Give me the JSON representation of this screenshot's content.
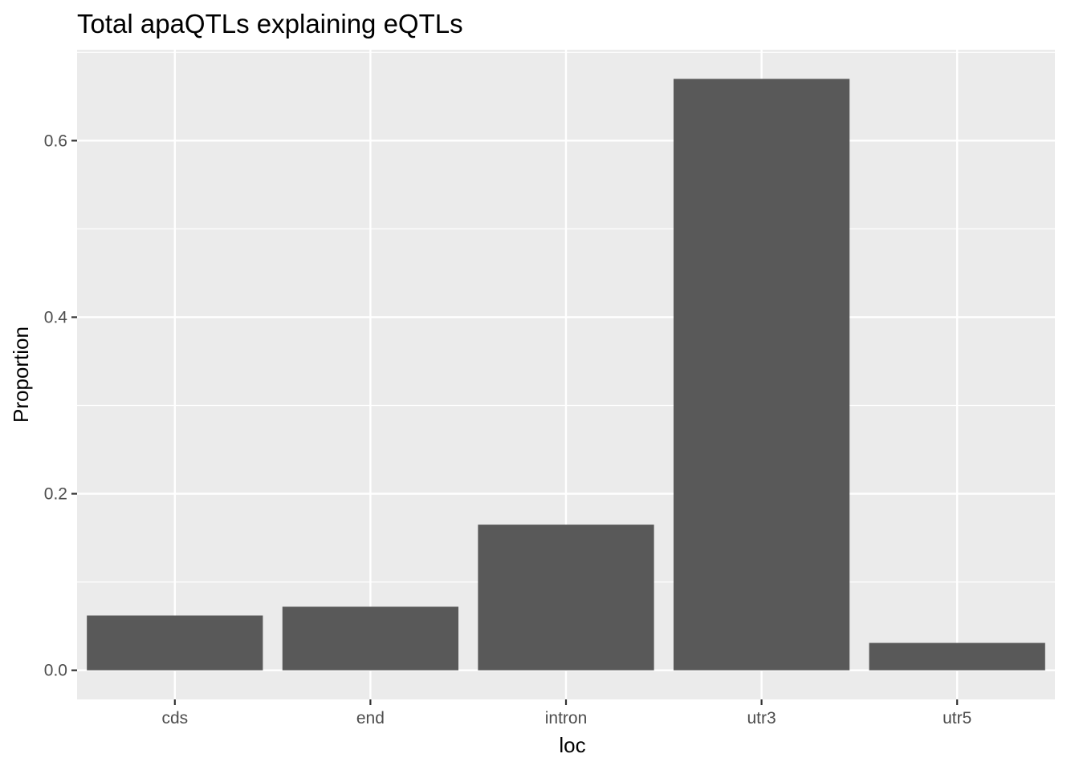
{
  "chart_data": {
    "type": "bar",
    "title": "Total apaQTLs explaining eQTLs",
    "xlabel": "loc",
    "ylabel": "Proportion",
    "categories": [
      "cds",
      "end",
      "intron",
      "utr3",
      "utr5"
    ],
    "values": [
      0.062,
      0.072,
      0.165,
      0.67,
      0.031
    ],
    "ylim": [
      -0.033,
      0.703
    ],
    "yticks": [
      0.0,
      0.2,
      0.4,
      0.6
    ],
    "ytick_labels": [
      "0.0",
      "0.2",
      "0.4",
      "0.6"
    ],
    "grid": true,
    "legend": "none",
    "colors": {
      "bar": "#595959",
      "panel_background": "#EBEBEB",
      "grid": "#FFFFFF",
      "tick_text": "#4D4D4D",
      "title_text": "#000000"
    }
  }
}
